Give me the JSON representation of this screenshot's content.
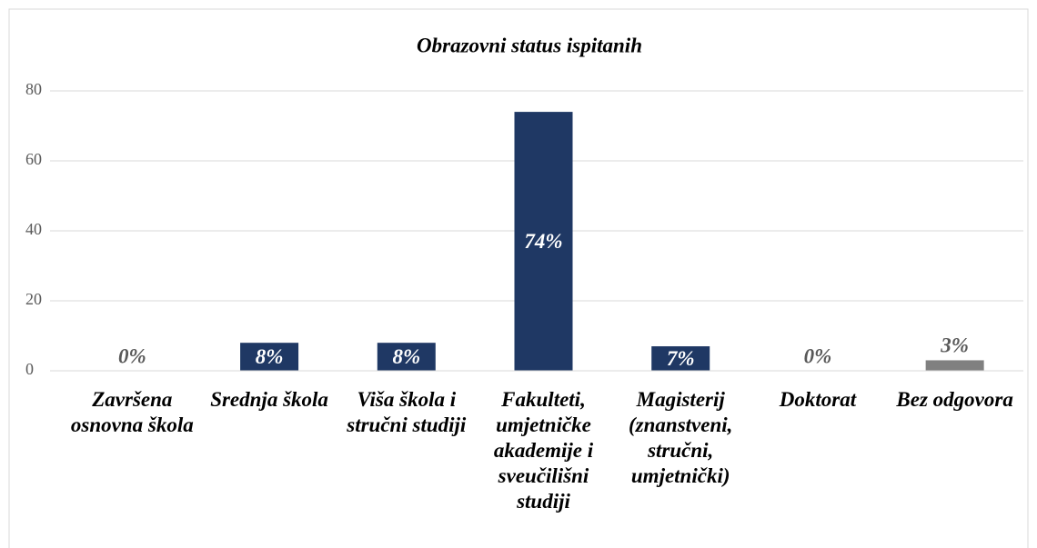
{
  "chart_data": {
    "type": "bar",
    "title": "Obrazovni status ispitanih",
    "categories": [
      "Završena osnovna škola",
      "Srednja škola",
      "Viša škola i stručni studiji",
      "Fakulteti, umjetničke akademije i sveučilišni studiji",
      "Magisterij (znanstveni, stručni, umjetnički)",
      "Doktorat",
      "Bez odgovora"
    ],
    "values": [
      0,
      8,
      8,
      74,
      7,
      0,
      3
    ],
    "value_labels": [
      "0%",
      "8%",
      "8%",
      "74%",
      "7%",
      "0%",
      "3%"
    ],
    "colors": [
      "#1f3864",
      "#1f3864",
      "#1f3864",
      "#1f3864",
      "#1f3864",
      "#1f3864",
      "#808080"
    ],
    "ylim": [
      0,
      80
    ],
    "yticks": [
      0,
      20,
      40,
      60,
      80
    ],
    "grid": true
  }
}
